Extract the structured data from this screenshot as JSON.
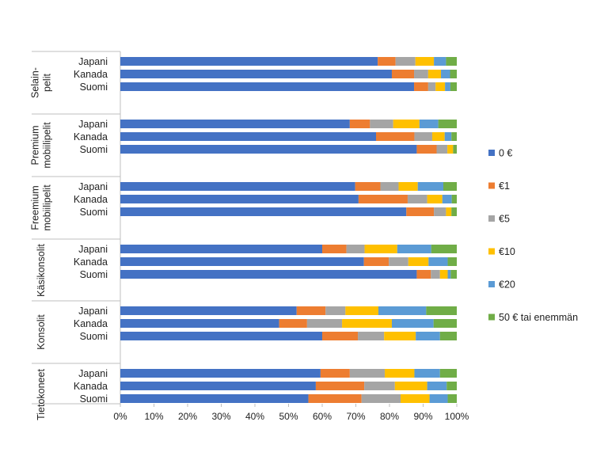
{
  "chart_data": {
    "type": "bar",
    "orientation": "horizontal",
    "stacking": "percent",
    "xlim": [
      0,
      100
    ],
    "x_ticks": [
      "0%",
      "10%",
      "20%",
      "30%",
      "40%",
      "50%",
      "60%",
      "70%",
      "80%",
      "90%",
      "100%"
    ],
    "legend_position": "right",
    "series": [
      {
        "name": "0 €",
        "color": "#4472C4"
      },
      {
        "name": "€1",
        "color": "#ED7D31"
      },
      {
        "name": "€5",
        "color": "#A5A5A5"
      },
      {
        "name": "€10",
        "color": "#FFC000"
      },
      {
        "name": "€20",
        "color": "#5B9BD5"
      },
      {
        "name": "50 € tai enemmän",
        "color": "#70AD47"
      }
    ],
    "groups": [
      {
        "label": [
          "Selain-",
          "pelit"
        ],
        "bars": [
          {
            "category": "Japani",
            "values": [
              76.5,
              5.3,
              5.9,
              5.5,
              3.6,
              3.2
            ]
          },
          {
            "category": "Kanada",
            "values": [
              80.7,
              6.6,
              4.2,
              3.8,
              2.7,
              2.0
            ]
          },
          {
            "category": "Suomi",
            "values": [
              87.3,
              4.2,
              2.2,
              2.8,
              1.6,
              1.9
            ]
          }
        ]
      },
      {
        "label": [
          "Premium",
          "mobiilipelit"
        ],
        "bars": [
          {
            "category": "Japani",
            "values": [
              68.2,
              6.0,
              6.9,
              7.8,
              5.6,
              5.5
            ]
          },
          {
            "category": "Kanada",
            "values": [
              76.0,
              11.4,
              5.3,
              3.7,
              2.0,
              1.6
            ]
          },
          {
            "category": "Suomi",
            "values": [
              88.1,
              5.9,
              3.2,
              1.7,
              0.0,
              1.1
            ]
          }
        ]
      },
      {
        "label": [
          "Freemium",
          "mobiilipelit"
        ],
        "bars": [
          {
            "category": "Japani",
            "values": [
              69.8,
              7.5,
              5.4,
              5.7,
              7.6,
              4.0
            ]
          },
          {
            "category": "Kanada",
            "values": [
              70.8,
              14.6,
              5.8,
              4.5,
              2.8,
              1.5
            ]
          },
          {
            "category": "Suomi",
            "values": [
              85.0,
              8.2,
              3.6,
              1.6,
              0.0,
              1.6
            ]
          }
        ]
      },
      {
        "label": [
          "Käsikonsolit"
        ],
        "bars": [
          {
            "category": "Japani",
            "values": [
              60.0,
              7.2,
              5.4,
              9.7,
              10.1,
              7.6
            ]
          },
          {
            "category": "Kanada",
            "values": [
              72.4,
              7.4,
              5.8,
              6.0,
              5.7,
              2.7
            ]
          },
          {
            "category": "Suomi",
            "values": [
              88.1,
              4.2,
              2.7,
              2.3,
              0.9,
              1.8
            ]
          }
        ]
      },
      {
        "label": [
          "Konsolit"
        ],
        "bars": [
          {
            "category": "Japani",
            "values": [
              52.4,
              8.6,
              5.9,
              9.8,
              14.2,
              9.1
            ]
          },
          {
            "category": "Kanada",
            "values": [
              47.2,
              8.3,
              10.4,
              14.8,
              12.4,
              6.9
            ]
          },
          {
            "category": "Suomi",
            "values": [
              60.0,
              10.6,
              7.8,
              9.4,
              7.2,
              5.0
            ]
          }
        ]
      },
      {
        "label": [
          "Tietokoneet"
        ],
        "bars": [
          {
            "category": "Japani",
            "values": [
              59.5,
              8.7,
              10.4,
              8.8,
              7.6,
              5.0
            ]
          },
          {
            "category": "Kanada",
            "values": [
              58.1,
              14.4,
              9.1,
              9.6,
              5.8,
              3.0
            ]
          },
          {
            "category": "Suomi",
            "values": [
              55.9,
              15.8,
              11.6,
              8.6,
              5.4,
              2.7
            ]
          }
        ]
      }
    ]
  }
}
